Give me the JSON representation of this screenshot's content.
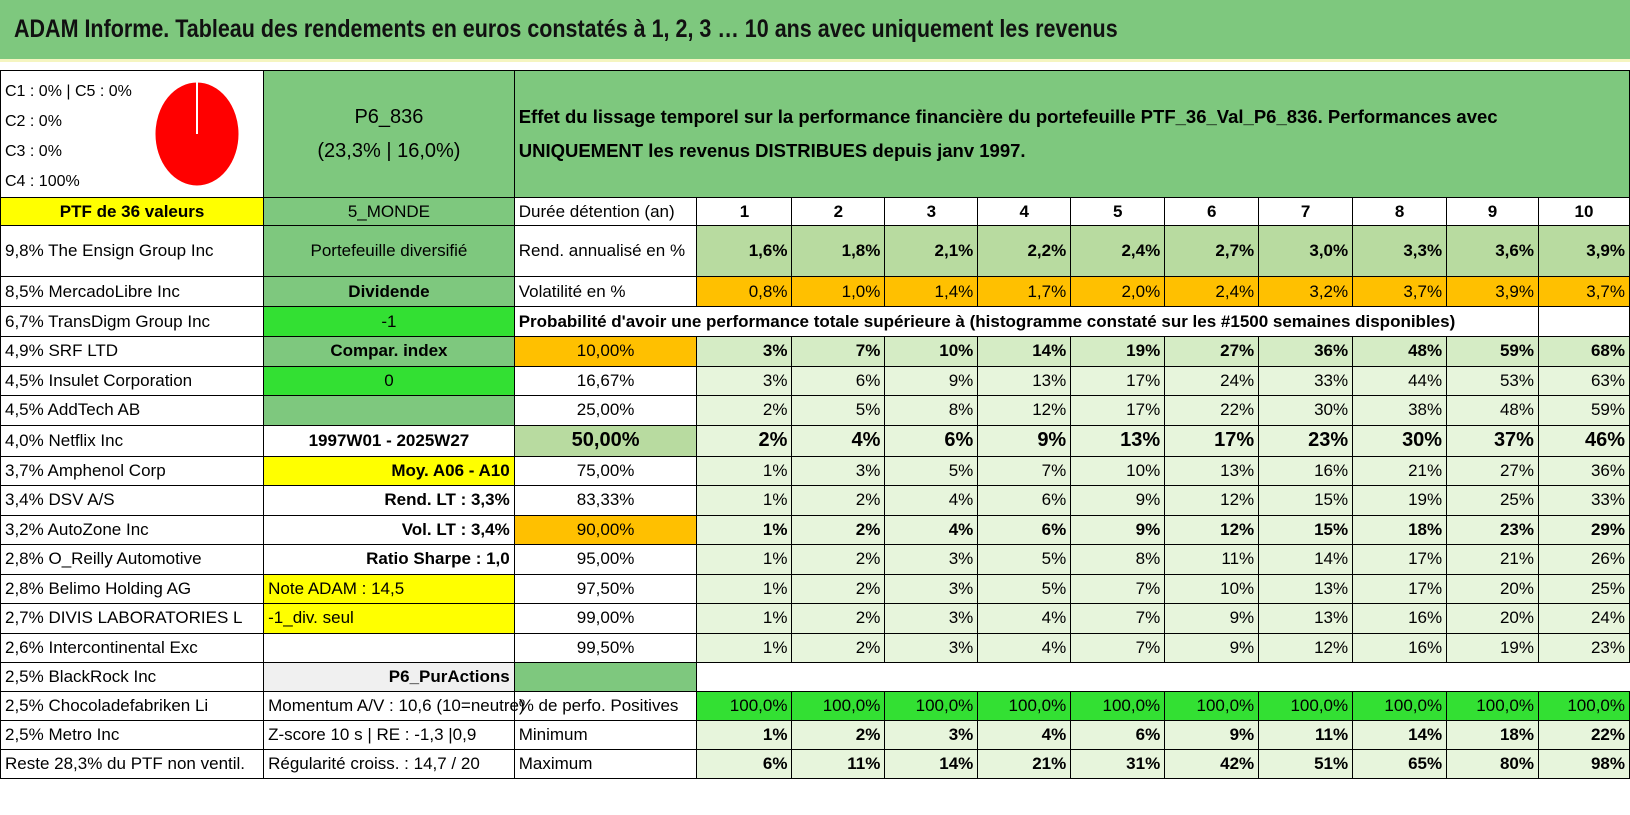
{
  "title": "ADAM Informe. Tableau des rendements en euros constatés à 1, 2, 3 … 10 ans avec uniquement les revenus",
  "classes": {
    "line1": "C1 : 0% | C5 : 0%",
    "line2": "C2 : 0%",
    "line3": "C3 : 0%",
    "line4": "C4 : 100%"
  },
  "portfolio": {
    "code": "P6_836",
    "stats": "(23,3% | 16,0%)",
    "description": "Effet du lissage temporel sur la performance financière du portefeuille PTF_36_Val_P6_836. Performances avec UNIQUEMENT les revenus DISTRIBUES depuis janv 1997.",
    "ptf_label": "PTF de 36 valeurs",
    "zone": "5_MONDE"
  },
  "header": {
    "duration_label": "Durée détention (an)",
    "years": [
      "1",
      "2",
      "3",
      "4",
      "5",
      "6",
      "7",
      "8",
      "9",
      "10"
    ]
  },
  "returns": {
    "label": "Rend. annualisé en %",
    "values": [
      "1,6%",
      "1,8%",
      "2,1%",
      "2,2%",
      "2,4%",
      "2,7%",
      "3,0%",
      "3,3%",
      "3,6%",
      "3,9%"
    ]
  },
  "volatility": {
    "label": "Volatilité en %",
    "values": [
      "0,8%",
      "1,0%",
      "1,4%",
      "1,7%",
      "2,0%",
      "2,4%",
      "3,2%",
      "3,7%",
      "3,9%",
      "3,7%"
    ]
  },
  "probability_title": "Probabilité d'avoir une performance totale supérieure à (histogramme constaté sur les #1500 semaines disponibles)",
  "holdings": [
    "9,8% The Ensign Group Inc",
    "8,5% MercadoLibre Inc",
    "6,7% TransDigm Group Inc",
    "4,9% SRF LTD",
    "4,5% Insulet Corporation",
    "4,5% AddTech AB",
    "4,0% Netflix Inc",
    "3,7% Amphenol Corp",
    "3,4% DSV A/S",
    "3,2% AutoZone Inc",
    "2,8% O_Reilly Automotive",
    "2,8% Belimo Holding AG",
    "2,7% DIVIS LABORATORIES L",
    "2,6% Intercontinental Exc",
    "2,5% BlackRock Inc",
    "2,5% Chocoladefabriken Li",
    "2,5% Metro Inc",
    "Reste 28,3% du PTF non ventil."
  ],
  "info": {
    "diversified": "Portefeuille diversifié",
    "dividend": "Dividende",
    "minus_one": "-1",
    "compar_index": "Compar. index",
    "zero": "0",
    "period": "1997W01 - 2025W27",
    "moy": "Moy. A06 - A10",
    "rend_lt": "Rend. LT : 3,3%",
    "vol_lt": "Vol. LT : 3,4%",
    "sharpe": "Ratio Sharpe : 1,0",
    "note": "Note ADAM : 14,5",
    "div_seul": "-1_div. seul",
    "pur_actions": "P6_PurActions",
    "momentum": "Momentum A/V : 10,6 (10=neutre)",
    "zscore": "Z-score 10 s | RE : -1,3 |0,9",
    "regularite": "Régularité croiss. : 14,7 / 20"
  },
  "percentiles": [
    {
      "p": "10,00%",
      "v": [
        "3%",
        "7%",
        "10%",
        "14%",
        "19%",
        "27%",
        "36%",
        "48%",
        "59%",
        "68%"
      ]
    },
    {
      "p": "16,67%",
      "v": [
        "3%",
        "6%",
        "9%",
        "13%",
        "17%",
        "24%",
        "33%",
        "44%",
        "53%",
        "63%"
      ]
    },
    {
      "p": "25,00%",
      "v": [
        "2%",
        "5%",
        "8%",
        "12%",
        "17%",
        "22%",
        "30%",
        "38%",
        "48%",
        "59%"
      ]
    },
    {
      "p": "50,00%",
      "v": [
        "2%",
        "4%",
        "6%",
        "9%",
        "13%",
        "17%",
        "23%",
        "30%",
        "37%",
        "46%"
      ]
    },
    {
      "p": "75,00%",
      "v": [
        "1%",
        "3%",
        "5%",
        "7%",
        "10%",
        "13%",
        "16%",
        "21%",
        "27%",
        "36%"
      ]
    },
    {
      "p": "83,33%",
      "v": [
        "1%",
        "2%",
        "4%",
        "6%",
        "9%",
        "12%",
        "15%",
        "19%",
        "25%",
        "33%"
      ]
    },
    {
      "p": "90,00%",
      "v": [
        "1%",
        "2%",
        "4%",
        "6%",
        "9%",
        "12%",
        "15%",
        "18%",
        "23%",
        "29%"
      ]
    },
    {
      "p": "95,00%",
      "v": [
        "1%",
        "2%",
        "3%",
        "5%",
        "8%",
        "11%",
        "14%",
        "17%",
        "21%",
        "26%"
      ]
    },
    {
      "p": "97,50%",
      "v": [
        "1%",
        "2%",
        "3%",
        "5%",
        "7%",
        "10%",
        "13%",
        "17%",
        "20%",
        "25%"
      ]
    },
    {
      "p": "99,00%",
      "v": [
        "1%",
        "2%",
        "3%",
        "4%",
        "7%",
        "9%",
        "13%",
        "16%",
        "20%",
        "24%"
      ]
    },
    {
      "p": "99,50%",
      "v": [
        "1%",
        "2%",
        "3%",
        "4%",
        "7%",
        "9%",
        "12%",
        "16%",
        "19%",
        "23%"
      ]
    }
  ],
  "positives": {
    "label": "% de perfo. Positives",
    "values": [
      "100,0%",
      "100,0%",
      "100,0%",
      "100,0%",
      "100,0%",
      "100,0%",
      "100,0%",
      "100,0%",
      "100,0%",
      "100,0%"
    ]
  },
  "minimum": {
    "label": "Minimum",
    "values": [
      "1%",
      "2%",
      "3%",
      "4%",
      "6%",
      "9%",
      "11%",
      "14%",
      "18%",
      "22%"
    ]
  },
  "maximum": {
    "label": "Maximum",
    "values": [
      "6%",
      "11%",
      "14%",
      "21%",
      "31%",
      "42%",
      "51%",
      "65%",
      "80%",
      "98%"
    ]
  },
  "colors": {
    "header_green": "#7ec87e",
    "yellow": "#ffff00",
    "orange": "#ffc000",
    "bright_green": "#33e033",
    "pie_red": "#ff0000"
  }
}
